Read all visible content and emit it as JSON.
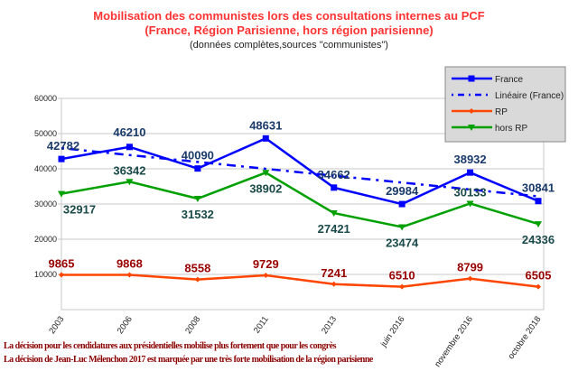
{
  "chart_data": {
    "type": "line",
    "title": "Mobilisation des communistes lors des consultations internes au PCF",
    "title_line2": "(France, Région Parisienne, hors région parisienne)",
    "subtitle": "(données complètes,sources \"communistes\")",
    "categories": [
      "2003",
      "2006",
      "2008",
      "2011",
      "2013",
      "juin 2016",
      "novembre 2016",
      "octobre 2018"
    ],
    "ylim": [
      0,
      60000
    ],
    "yticks": [
      10000,
      20000,
      30000,
      40000,
      50000,
      60000
    ],
    "grid": true,
    "legend_position": "top-right",
    "series": [
      {
        "name": "France",
        "color": "#0000ff",
        "marker": "square",
        "label_color": "#1a3a6a",
        "values": [
          42782,
          46210,
          40090,
          48631,
          34662,
          29984,
          38932,
          30841
        ]
      },
      {
        "name": "RP",
        "color": "#ff4500",
        "marker": "diamond",
        "label_color": "#990000",
        "values": [
          9865,
          9868,
          8558,
          9729,
          7241,
          6510,
          8799,
          6505
        ]
      },
      {
        "name": "hors RP",
        "color": "#00a000",
        "marker": "triangle-down",
        "label_color": "#1a4a4a",
        "values": [
          32917,
          36342,
          31532,
          38902,
          27421,
          23474,
          30133,
          24336
        ]
      }
    ],
    "trendline": {
      "name": "Linéaire (France)",
      "of": "France",
      "type": "linear",
      "color": "#0000ff",
      "style": "dash-dot"
    }
  },
  "notes": [
    "La décision pour les cendidatures aux présidentielles mobilise plus fortement que pour les congrès",
    "La décision de Jean-Luc Mélenchon 2017 est marquée par une très forte mobilisation de la région parisienne"
  ]
}
